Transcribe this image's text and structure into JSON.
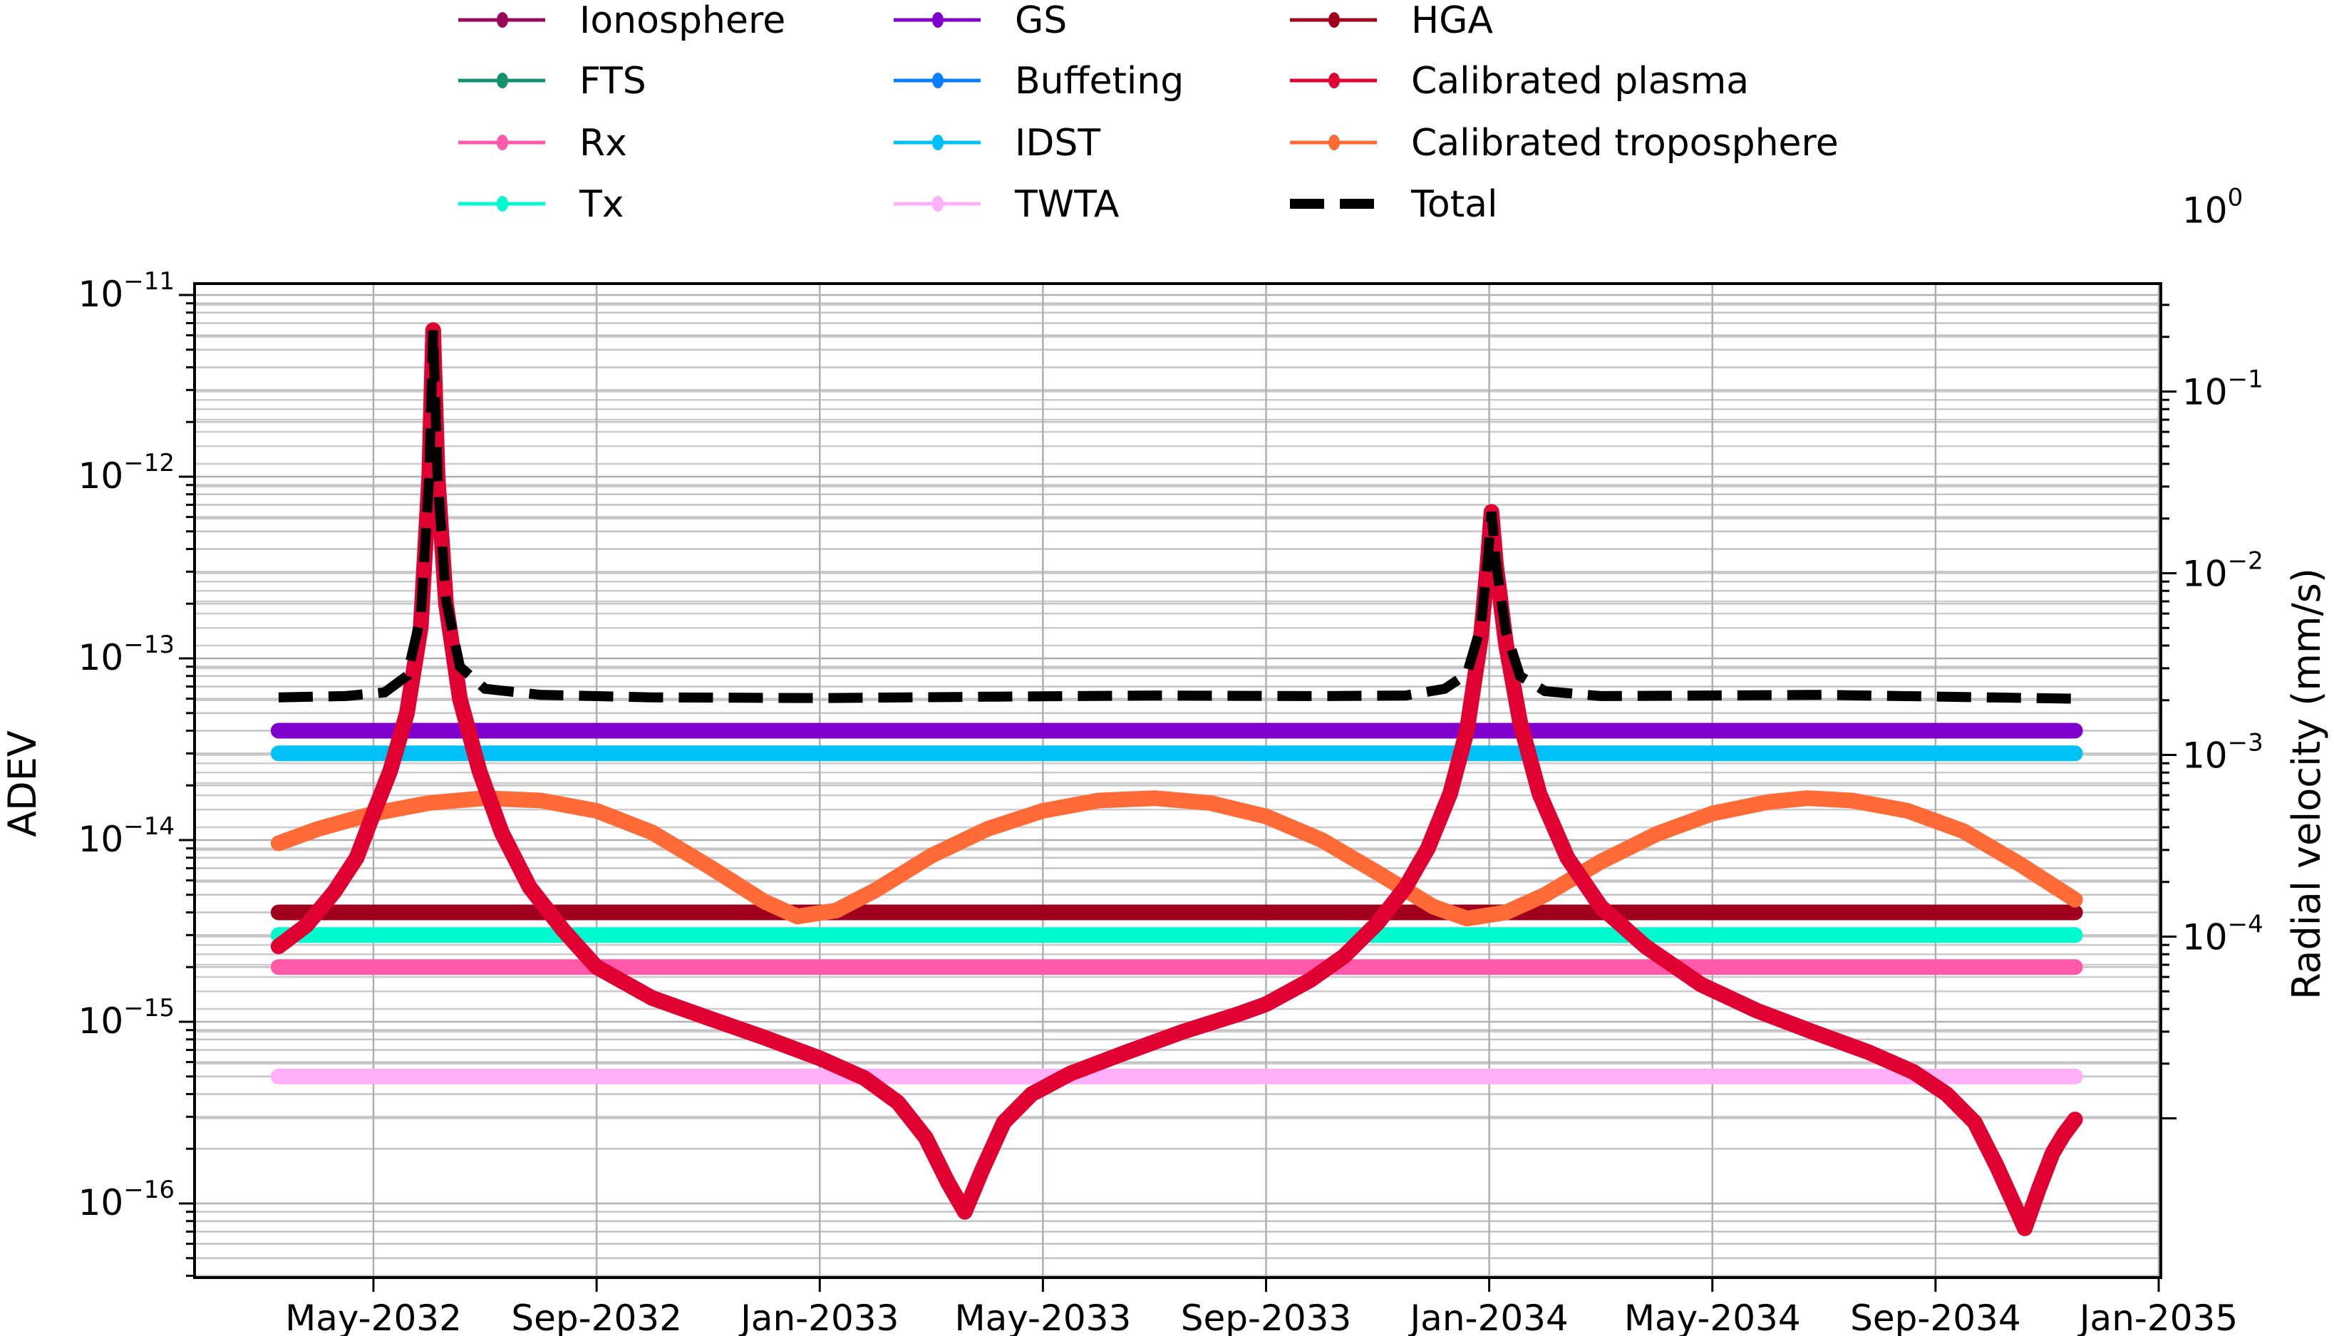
{
  "chart_data": {
    "type": "line",
    "title": "",
    "xlabel": "",
    "ylabel": "ADEV",
    "ylabel_right": "Radial velocity (mm/s)",
    "yscale": "log",
    "ylim": [
      4.5e-17,
      1.2e-11
    ],
    "ylim_right_decades": [
      -4,
      0
    ],
    "right_axis_factor": 34000000000.0,
    "grid": true,
    "legend_position": "top (outside, 3 columns)",
    "x_ticks": [
      "May-2032",
      "Sep-2032",
      "Jan-2033",
      "May-2033",
      "Sep-2033",
      "Jan-2034",
      "May-2034",
      "Sep-2034",
      "Jan-2035"
    ],
    "x_tick_months": [
      4,
      8,
      12,
      16,
      20,
      24,
      28,
      32,
      36
    ],
    "x_month_origin": "Jan-2032",
    "x_range_months": [
      0.3,
      36.2
    ],
    "y_ticks_left": [
      "10^-11",
      "10^-12",
      "10^-13",
      "10^-14",
      "10^-15",
      "10^-16"
    ],
    "y_ticks_left_exp": [
      -11,
      -12,
      -13,
      -14,
      -15,
      -16
    ],
    "y_ticks_right": [
      "10^0",
      "10^-1",
      "10^-2",
      "10^-3",
      "10^-4"
    ],
    "y_ticks_right_exp": [
      0,
      -1,
      -2,
      -3,
      -4
    ],
    "series": [
      {
        "name": "Ionosphere",
        "color": "#9b0a5a",
        "style": "solid-marker",
        "points": []
      },
      {
        "name": "FTS",
        "color": "#14906e",
        "style": "solid-marker",
        "points": []
      },
      {
        "name": "Rx",
        "color": "#ff5aaa",
        "style": "solid-marker",
        "points": [
          [
            2.3,
            2e-15
          ],
          [
            34.5,
            2e-15
          ]
        ]
      },
      {
        "name": "Tx",
        "color": "#00fad0",
        "style": "solid-marker",
        "points": [
          [
            2.3,
            3e-15
          ],
          [
            34.5,
            3e-15
          ]
        ]
      },
      {
        "name": "GS",
        "color": "#7f00cc",
        "style": "solid-marker",
        "points": [
          [
            2.3,
            4e-14
          ],
          [
            34.5,
            4e-14
          ]
        ]
      },
      {
        "name": "Buffeting",
        "color": "#0a7dff",
        "style": "solid-marker",
        "points": []
      },
      {
        "name": "IDST",
        "color": "#00c0f8",
        "style": "solid-marker",
        "points": [
          [
            2.3,
            3e-14
          ],
          [
            34.5,
            3e-14
          ]
        ]
      },
      {
        "name": "TWTA",
        "color": "#ffb0f8",
        "style": "solid-marker",
        "points": [
          [
            2.3,
            5e-16
          ],
          [
            34.5,
            5e-16
          ]
        ]
      },
      {
        "name": "HGA",
        "color": "#a0001e",
        "style": "solid-marker",
        "points": [
          [
            2.3,
            4e-15
          ],
          [
            34.5,
            4e-15
          ]
        ]
      },
      {
        "name": "Calibrated plasma",
        "color": "#e00032",
        "style": "solid-marker",
        "points": [
          [
            2.3,
            2.6e-15
          ],
          [
            2.8,
            3.4e-15
          ],
          [
            3.3,
            5.2e-15
          ],
          [
            3.7,
            8e-15
          ],
          [
            4.0,
            1.4e-14
          ],
          [
            4.3,
            2.4e-14
          ],
          [
            4.6,
            5e-14
          ],
          [
            4.85,
            1.5e-13
          ],
          [
            5.0,
            1e-12
          ],
          [
            5.07,
            6.4e-12
          ],
          [
            5.15,
            1e-12
          ],
          [
            5.3,
            2e-13
          ],
          [
            5.55,
            6e-14
          ],
          [
            5.9,
            2.4e-14
          ],
          [
            6.3,
            1.1e-14
          ],
          [
            6.8,
            5.5e-15
          ],
          [
            7.4,
            3.2e-15
          ],
          [
            8.0,
            2e-15
          ],
          [
            9.0,
            1.35e-15
          ],
          [
            10.0,
            1.05e-15
          ],
          [
            11.0,
            8.2e-16
          ],
          [
            12.0,
            6.3e-16
          ],
          [
            12.8,
            4.9e-16
          ],
          [
            13.4,
            3.6e-16
          ],
          [
            13.9,
            2.3e-16
          ],
          [
            14.3,
            1.3e-16
          ],
          [
            14.6,
            9e-17
          ],
          [
            14.9,
            1.5e-16
          ],
          [
            15.3,
            2.8e-16
          ],
          [
            15.8,
            4e-16
          ],
          [
            16.5,
            5.2e-16
          ],
          [
            17.5,
            6.8e-16
          ],
          [
            18.5,
            8.8e-16
          ],
          [
            19.5,
            1.1e-15
          ],
          [
            20.0,
            1.25e-15
          ],
          [
            20.8,
            1.7e-15
          ],
          [
            21.4,
            2.3e-15
          ],
          [
            22.0,
            3.5e-15
          ],
          [
            22.5,
            5.5e-15
          ],
          [
            22.9,
            9e-15
          ],
          [
            23.3,
            1.8e-14
          ],
          [
            23.6,
            4e-14
          ],
          [
            23.85,
            1.3e-13
          ],
          [
            23.97,
            3.3e-13
          ],
          [
            24.04,
            6.4e-13
          ],
          [
            24.12,
            3.3e-13
          ],
          [
            24.3,
            1.2e-13
          ],
          [
            24.55,
            4.5e-14
          ],
          [
            24.9,
            1.8e-14
          ],
          [
            25.4,
            8e-15
          ],
          [
            26.0,
            4.3e-15
          ],
          [
            26.8,
            2.6e-15
          ],
          [
            27.8,
            1.6e-15
          ],
          [
            28.8,
            1.15e-15
          ],
          [
            29.8,
            8.8e-16
          ],
          [
            30.8,
            6.8e-16
          ],
          [
            31.6,
            5.3e-16
          ],
          [
            32.2,
            4e-16
          ],
          [
            32.7,
            2.8e-16
          ],
          [
            33.1,
            1.6e-16
          ],
          [
            33.4,
            1e-16
          ],
          [
            33.6,
            7.3e-17
          ],
          [
            33.85,
            1.2e-16
          ],
          [
            34.1,
            1.9e-16
          ],
          [
            34.3,
            2.4e-16
          ],
          [
            34.5,
            2.9e-16
          ]
        ]
      },
      {
        "name": "Calibrated troposphere",
        "color": "#ff6a36",
        "style": "solid-marker",
        "points": [
          [
            2.3,
            9.6e-15
          ],
          [
            3.0,
            1.15e-14
          ],
          [
            4.0,
            1.4e-14
          ],
          [
            5.0,
            1.6e-14
          ],
          [
            6.0,
            1.7e-14
          ],
          [
            7.0,
            1.65e-14
          ],
          [
            8.0,
            1.45e-14
          ],
          [
            9.0,
            1.1e-14
          ],
          [
            10.0,
            7.2e-15
          ],
          [
            11.0,
            4.6e-15
          ],
          [
            11.6,
            3.8e-15
          ],
          [
            12.3,
            4.1e-15
          ],
          [
            13.0,
            5.3e-15
          ],
          [
            14.0,
            8.2e-15
          ],
          [
            15.0,
            1.15e-14
          ],
          [
            16.0,
            1.45e-14
          ],
          [
            17.0,
            1.65e-14
          ],
          [
            18.0,
            1.7e-14
          ],
          [
            19.0,
            1.6e-14
          ],
          [
            20.0,
            1.35e-14
          ],
          [
            21.0,
            1e-14
          ],
          [
            22.0,
            6.6e-15
          ],
          [
            23.0,
            4.3e-15
          ],
          [
            23.6,
            3.7e-15
          ],
          [
            24.3,
            4e-15
          ],
          [
            25.0,
            5e-15
          ],
          [
            26.0,
            7.6e-15
          ],
          [
            27.0,
            1.08e-14
          ],
          [
            28.0,
            1.4e-14
          ],
          [
            29.0,
            1.62e-14
          ],
          [
            29.7,
            1.7e-14
          ],
          [
            30.5,
            1.65e-14
          ],
          [
            31.5,
            1.45e-14
          ],
          [
            32.5,
            1.12e-14
          ],
          [
            33.5,
            7.4e-15
          ],
          [
            34.5,
            4.7e-15
          ]
        ]
      },
      {
        "name": "Total",
        "color": "#000000",
        "style": "dashed",
        "points": [
          [
            2.3,
            6.1e-14
          ],
          [
            3.5,
            6.2e-14
          ],
          [
            4.2,
            6.5e-14
          ],
          [
            4.6,
            8e-14
          ],
          [
            4.85,
            1.7e-13
          ],
          [
            5.0,
            1e-12
          ],
          [
            5.07,
            6.4e-12
          ],
          [
            5.15,
            1e-12
          ],
          [
            5.3,
            2.1e-13
          ],
          [
            5.55,
            9e-14
          ],
          [
            6.0,
            6.8e-14
          ],
          [
            7.0,
            6.3e-14
          ],
          [
            9.0,
            6.1e-14
          ],
          [
            12.0,
            6.05e-14
          ],
          [
            15.0,
            6.15e-14
          ],
          [
            18.0,
            6.25e-14
          ],
          [
            21.0,
            6.2e-14
          ],
          [
            22.5,
            6.25e-14
          ],
          [
            23.2,
            6.8e-14
          ],
          [
            23.6,
            8.2e-14
          ],
          [
            23.85,
            1.5e-13
          ],
          [
            23.97,
            3.4e-13
          ],
          [
            24.04,
            6.4e-13
          ],
          [
            24.12,
            3.4e-13
          ],
          [
            24.3,
            1.4e-13
          ],
          [
            24.55,
            8e-14
          ],
          [
            25.0,
            6.6e-14
          ],
          [
            26.0,
            6.2e-14
          ],
          [
            30.0,
            6.3e-14
          ],
          [
            34.5,
            6e-14
          ]
        ]
      }
    ]
  },
  "legend": {
    "columns": [
      [
        "Ionosphere",
        "FTS",
        "Rx",
        "Tx"
      ],
      [
        "GS",
        "Buffeting",
        "IDST",
        "TWTA"
      ],
      [
        "HGA",
        "Calibrated plasma",
        "Calibrated troposphere",
        "Total"
      ]
    ]
  },
  "axes": {
    "left_label": "ADEV",
    "right_label": "Radial velocity (mm/s)",
    "tick_base": "10",
    "minus": "−"
  }
}
